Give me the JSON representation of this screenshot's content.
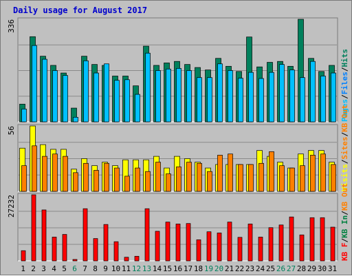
{
  "chart_data": {
    "type": "bar",
    "title": "Daily usage for August 2017",
    "categories": [
      "1",
      "2",
      "3",
      "4",
      "5",
      "6",
      "7",
      "8",
      "9",
      "10",
      "11",
      "12",
      "13",
      "14",
      "15",
      "16",
      "17",
      "18",
      "19",
      "20",
      "21",
      "22",
      "23",
      "24",
      "25",
      "26",
      "27",
      "28",
      "29",
      "30",
      "31"
    ],
    "weekend_days": [
      "6",
      "12",
      "13",
      "19",
      "20",
      "26",
      "27"
    ],
    "panels": [
      {
        "name": "hits-files-pages",
        "ymax_label": "336",
        "ymax": 336,
        "legend": [
          "Pages",
          "/",
          "Files",
          "/",
          "Hits"
        ],
        "series": [
          {
            "name": "Hits",
            "values": [
              58,
              279,
              215,
              185,
              160,
              45,
              215,
              188,
              185,
              150,
              150,
              118,
              248,
              185,
              193,
              198,
              188,
              178,
              170,
              208,
              182,
              165,
              278,
              180,
              195,
              198,
              182,
              336,
              208,
              165,
              185
            ]
          },
          {
            "name": "Files",
            "values": [
              42,
              250,
              205,
              168,
              152,
              15,
              200,
              160,
              190,
              136,
              138,
              90,
              225,
              168,
              173,
              175,
              168,
              145,
              145,
              190,
              168,
              143,
              162,
              142,
              162,
              188,
              170,
              145,
              198,
              150,
              160
            ]
          }
        ]
      },
      {
        "name": "visits-sites",
        "ymax_label": "56",
        "ymax": 56,
        "legend": [
          "Visits",
          "/",
          "Sites",
          "/",
          "KB Out"
        ],
        "series": [
          {
            "name": "Visits",
            "values": [
              37,
              56,
              40,
              36,
              36,
              19,
              28,
              22,
              25,
              22,
              27,
              27,
              27,
              30,
              20,
              30,
              28,
              25,
              20,
              23,
              23,
              23,
              23,
              35,
              30,
              25,
              20,
              32,
              35,
              35,
              25
            ]
          },
          {
            "name": "Sites",
            "values": [
              22,
              39,
              30,
              32,
              30,
              16,
              24,
              18,
              24,
              20,
              13,
              20,
              17,
              25,
              15,
              21,
              25,
              24,
              17,
              31,
              32,
              23,
              23,
              24,
              34,
              22,
              20,
              22,
              31,
              32,
              23
            ]
          }
        ]
      },
      {
        "name": "kbf-kbin",
        "ymax_label": "27232",
        "ymax": 27232,
        "legend": [
          "KB F",
          "/",
          "KB In",
          "/",
          "KB Out"
        ],
        "series": [
          {
            "name": "KB F",
            "values": [
              4200,
              27232,
              21000,
              9800,
              10900,
              580,
              21500,
              9200,
              15000,
              7900,
              1500,
              1900,
              21500,
              12200,
              16000,
              15200,
              15400,
              8700,
              12000,
              11500,
              16000,
              9700,
              15200,
              9800,
              13700,
              14800,
              18100,
              10700,
              17800,
              17800,
              13900
            ]
          }
        ]
      }
    ],
    "colors": {
      "hits": "#00805c",
      "files": "#0080ff",
      "files_light": "#00c0ff",
      "visits": "#ffff00",
      "sites": "#ff8000",
      "kbf": "#ff0000",
      "kbin": "#008040",
      "kbout": "#ff8000",
      "title": "#0000cc",
      "weekday_label": "#000000",
      "weekend_label": "#00805c"
    }
  }
}
